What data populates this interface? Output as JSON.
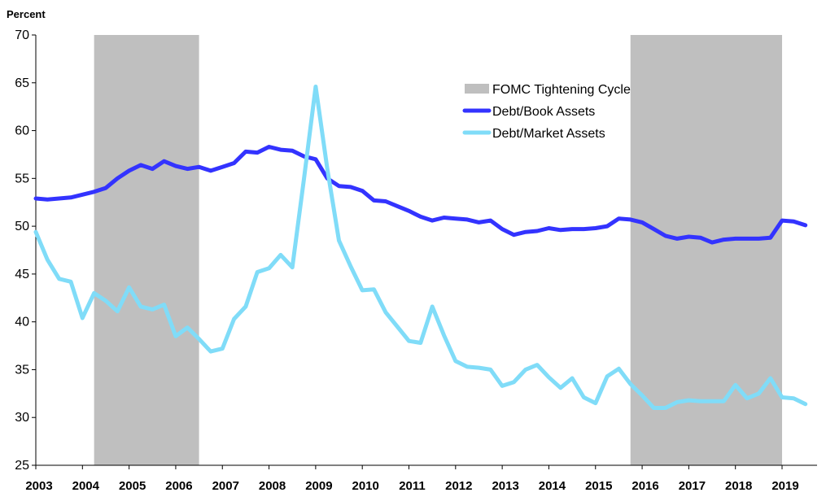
{
  "chart_data": {
    "type": "line",
    "title": "",
    "ylabel": "Percent",
    "xlabel": "",
    "ylim": [
      25,
      70
    ],
    "y_ticks": [
      "25",
      "30",
      "35",
      "40",
      "45",
      "50",
      "55",
      "60",
      "65",
      "70"
    ],
    "xlim": [
      2003,
      2019.75
    ],
    "x_ticks": [
      "2003",
      "2004",
      "2005",
      "2006",
      "2007",
      "2008",
      "2009",
      "2010",
      "2011",
      "2012",
      "2013",
      "2014",
      "2015",
      "2016",
      "2017",
      "2018",
      "2019"
    ],
    "x": [
      2003.0,
      2003.25,
      2003.5,
      2003.75,
      2004.0,
      2004.25,
      2004.5,
      2004.75,
      2005.0,
      2005.25,
      2005.5,
      2005.75,
      2006.0,
      2006.25,
      2006.5,
      2006.75,
      2007.0,
      2007.25,
      2007.5,
      2007.75,
      2008.0,
      2008.25,
      2008.5,
      2008.75,
      2009.0,
      2009.25,
      2009.5,
      2009.75,
      2010.0,
      2010.25,
      2010.5,
      2010.75,
      2011.0,
      2011.25,
      2011.5,
      2011.75,
      2012.0,
      2012.25,
      2012.5,
      2012.75,
      2013.0,
      2013.25,
      2013.5,
      2013.75,
      2014.0,
      2014.25,
      2014.5,
      2014.75,
      2015.0,
      2015.25,
      2015.5,
      2015.75,
      2016.0,
      2016.25,
      2016.5,
      2016.75,
      2017.0,
      2017.25,
      2017.5,
      2017.75,
      2018.0,
      2018.25,
      2018.5,
      2018.75,
      2019.0,
      2019.25,
      2019.5,
      2019.75
    ],
    "series": [
      {
        "name": "Debt/Book Assets",
        "color": "#3333ff",
        "values": [
          52.9,
          52.8,
          52.9,
          53.0,
          53.3,
          53.6,
          54.0,
          55.0,
          55.8,
          56.4,
          56.0,
          56.8,
          56.3,
          56.0,
          56.2,
          55.8,
          56.2,
          56.6,
          57.8,
          57.7,
          58.3,
          58.0,
          57.9,
          57.3,
          57.0,
          55.0,
          54.2,
          54.1,
          53.7,
          52.7,
          52.6,
          52.1,
          51.6,
          51.0,
          50.6,
          50.9,
          50.8,
          50.7,
          50.4,
          50.6,
          49.7,
          49.1,
          49.4,
          49.5,
          49.8,
          49.6,
          49.7,
          49.7,
          49.8,
          50.0,
          50.8,
          50.7,
          50.4,
          49.7,
          49.0,
          48.7,
          48.9,
          48.8,
          48.3,
          48.6,
          48.7,
          48.7,
          48.7,
          48.8,
          50.6,
          50.5,
          50.1,
          null
        ]
      },
      {
        "name": "Debt/Market Assets",
        "color": "#80dcf8",
        "values": [
          49.4,
          46.5,
          44.5,
          44.2,
          40.4,
          43.0,
          42.2,
          41.1,
          43.6,
          41.6,
          41.3,
          41.8,
          38.5,
          39.4,
          38.2,
          36.9,
          37.2,
          40.3,
          41.6,
          45.2,
          45.6,
          47.0,
          45.7,
          55.0,
          64.6,
          56.0,
          48.5,
          45.8,
          43.3,
          43.4,
          41.0,
          39.5,
          38.0,
          37.8,
          41.6,
          38.6,
          35.9,
          35.3,
          35.2,
          35.0,
          33.3,
          33.7,
          35.0,
          35.5,
          34.2,
          33.1,
          34.1,
          32.1,
          31.5,
          34.3,
          35.1,
          33.5,
          32.3,
          31.0,
          31.0,
          31.6,
          31.8,
          31.7,
          31.7,
          31.7,
          33.4,
          32.0,
          32.5,
          34.1,
          32.1,
          32.0,
          31.4,
          null
        ]
      }
    ],
    "shaded_periods": [
      {
        "name": "FOMC Tightening Cycle",
        "start": 2004.25,
        "end": 2006.5,
        "color": "#bfbfbf"
      },
      {
        "name": "FOMC Tightening Cycle",
        "start": 2015.75,
        "end": 2019.0,
        "color": "#bfbfbf"
      }
    ],
    "legend": {
      "position": "top-center",
      "entries": [
        {
          "label": "FOMC Tightening Cycle",
          "color": "#bfbfbf",
          "kind": "box"
        },
        {
          "label": "Debt/Book Assets",
          "color": "#3333ff",
          "kind": "line"
        },
        {
          "label": "Debt/Market Assets",
          "color": "#80dcf8",
          "kind": "line"
        }
      ]
    },
    "grid": false
  }
}
